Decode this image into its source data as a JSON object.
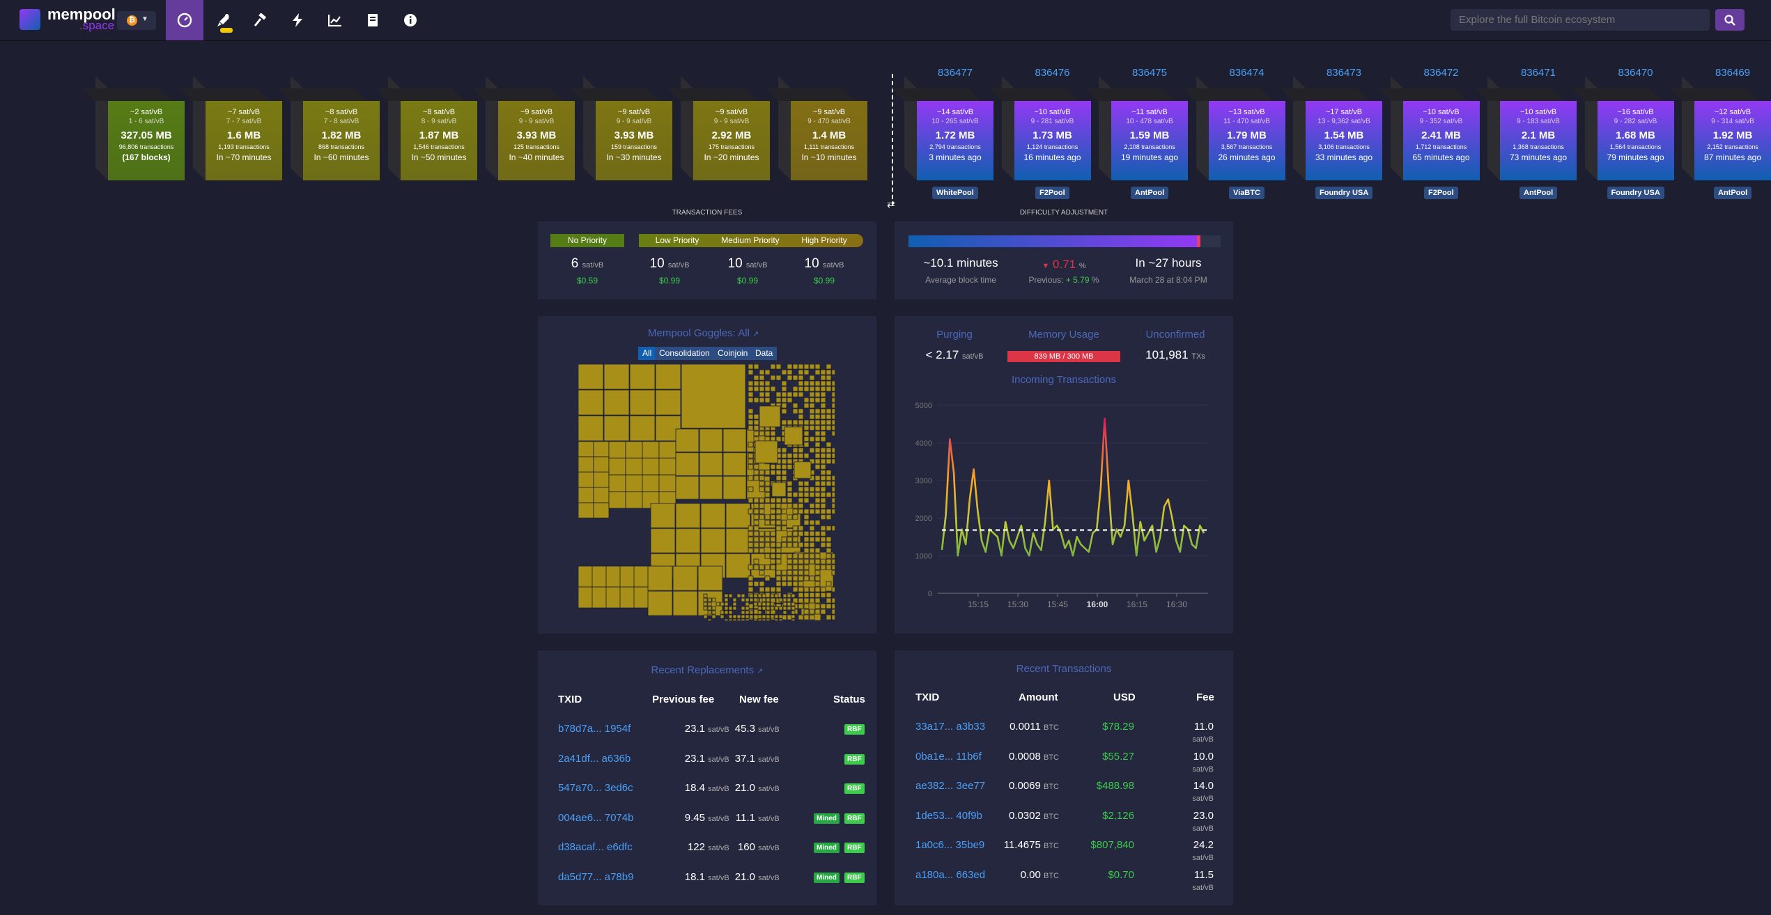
{
  "header": {
    "logo_word": "mempool",
    "logo_suffix": ".space",
    "search_placeholder": "Explore the full Bitcoin ecosystem",
    "nav_icons": [
      "dashboard-icon",
      "rocket-icon",
      "hammer-icon",
      "lightning-icon",
      "graphs-icon",
      "docs-icon",
      "about-icon"
    ]
  },
  "mempool_blocks": [
    {
      "fee": "~2 sat/vB",
      "range": "1 - 6 sat/vB",
      "size": "327.05 MB",
      "tx": "96,806 transactions",
      "eta": "(167 blocks)",
      "color": "#567c15"
    },
    {
      "fee": "~7 sat/vB",
      "range": "7 - 7 sat/vB",
      "size": "1.6 MB",
      "tx": "1,193 transactions",
      "eta": "In ~70 minutes",
      "color": "#7a7a13"
    },
    {
      "fee": "~8 sat/vB",
      "range": "7 - 8 sat/vB",
      "size": "1.82 MB",
      "tx": "868 transactions",
      "eta": "In ~60 minutes",
      "color": "#7a7a13"
    },
    {
      "fee": "~8 sat/vB",
      "range": "8 - 9 sat/vB",
      "size": "1.87 MB",
      "tx": "1,546 transactions",
      "eta": "In ~50 minutes",
      "color": "#7a7a13"
    },
    {
      "fee": "~9 sat/vB",
      "range": "9 - 9 sat/vB",
      "size": "3.93 MB",
      "tx": "125 transactions",
      "eta": "In ~40 minutes",
      "color": "#7e7613"
    },
    {
      "fee": "~9 sat/vB",
      "range": "9 - 9 sat/vB",
      "size": "3.93 MB",
      "tx": "159 transactions",
      "eta": "In ~30 minutes",
      "color": "#7e7613"
    },
    {
      "fee": "~9 sat/vB",
      "range": "9 - 9 sat/vB",
      "size": "2.92 MB",
      "tx": "175 transactions",
      "eta": "In ~20 minutes",
      "color": "#7e7613"
    },
    {
      "fee": "~9 sat/vB",
      "range": "9 - 470 sat/vB",
      "size": "1.4 MB",
      "tx": "1,111 transactions",
      "eta": "In ~10 minutes",
      "color": "#826f14"
    }
  ],
  "mined_blocks": [
    {
      "height": "836477",
      "fee": "~14 sat/vB",
      "range": "10 - 265 sat/vB",
      "size": "1.72 MB",
      "tx": "2,794 transactions",
      "ago": "3 minutes ago",
      "pool": "WhitePool"
    },
    {
      "height": "836476",
      "fee": "~10 sat/vB",
      "range": "9 - 281 sat/vB",
      "size": "1.73 MB",
      "tx": "1,124 transactions",
      "ago": "16 minutes ago",
      "pool": "F2Pool"
    },
    {
      "height": "836475",
      "fee": "~11 sat/vB",
      "range": "10 - 478 sat/vB",
      "size": "1.59 MB",
      "tx": "2,108 transactions",
      "ago": "19 minutes ago",
      "pool": "AntPool"
    },
    {
      "height": "836474",
      "fee": "~13 sat/vB",
      "range": "11 - 470 sat/vB",
      "size": "1.79 MB",
      "tx": "3,567 transactions",
      "ago": "26 minutes ago",
      "pool": "ViaBTC"
    },
    {
      "height": "836473",
      "fee": "~17 sat/vB",
      "range": "13 - 9,362 sat/vB",
      "size": "1.54 MB",
      "tx": "3,106 transactions",
      "ago": "33 minutes ago",
      "pool": "Foundry USA"
    },
    {
      "height": "836472",
      "fee": "~10 sat/vB",
      "range": "9 - 352 sat/vB",
      "size": "2.41 MB",
      "tx": "1,712 transactions",
      "ago": "65 minutes ago",
      "pool": "F2Pool"
    },
    {
      "height": "836471",
      "fee": "~10 sat/vB",
      "range": "9 - 183 sat/vB",
      "size": "2.1 MB",
      "tx": "1,368 transactions",
      "ago": "73 minutes ago",
      "pool": "AntPool"
    },
    {
      "height": "836470",
      "fee": "~16 sat/vB",
      "range": "9 - 282 sat/vB",
      "size": "1.68 MB",
      "tx": "1,564 transactions",
      "ago": "79 minutes ago",
      "pool": "Foundry USA"
    },
    {
      "height": "836469",
      "fee": "~12 sat/vB",
      "range": "9 - 314 sat/vB",
      "size": "1.92 MB",
      "tx": "2,152 transactions",
      "ago": "87 minutes ago",
      "pool": "AntPool"
    }
  ],
  "fees": {
    "title": "TRANSACTION FEES",
    "labels": [
      "No Priority",
      "Low Priority",
      "Medium Priority",
      "High Priority"
    ],
    "values": [
      "6",
      "10",
      "10",
      "10"
    ],
    "unit": "sat/vB",
    "usd": [
      "$0.59",
      "$0.99",
      "$0.99",
      "$0.99"
    ]
  },
  "difficulty": {
    "title": "DIFFICULTY ADJUSTMENT",
    "progress": 0.93,
    "block_time": "~10.1 minutes",
    "block_time_label": "Average block time",
    "change": "0.71",
    "change_unit": "%",
    "previous_label": "Previous:",
    "previous": "+ 5.79",
    "previous_unit": "%",
    "eta": "In ~27 hours",
    "eta_date": "March 28 at 8:04 PM"
  },
  "goggles": {
    "title": "Mempool Goggles: All",
    "tabs": [
      "All",
      "Consolidation",
      "Coinjoin",
      "Data"
    ]
  },
  "stats": {
    "purging_label": "Purging",
    "purging_value": "< 2.17",
    "purging_unit": "sat/vB",
    "memory_label": "Memory Usage",
    "memory_value": "839 MB / 300 MB",
    "memory_fraction": 1.0,
    "unconfirmed_label": "Unconfirmed",
    "unconfirmed_value": "101,981",
    "unconfirmed_unit": "TXs",
    "chart_title": "Incoming Transactions"
  },
  "chart_data": {
    "type": "line",
    "title": "Incoming Transactions",
    "xlabel": "",
    "ylabel": "",
    "ylim": [
      0,
      5000
    ],
    "yticks": [
      "0",
      "1000",
      "2000",
      "3000",
      "4000",
      "5000"
    ],
    "xticks": [
      "15:15",
      "15:30",
      "15:45",
      "16:00",
      "16:15",
      "16:30"
    ],
    "reference_line": 1680,
    "series": [
      {
        "values": [
          1150,
          2100,
          4100,
          3200,
          1000,
          1700,
          1300,
          2500,
          3300,
          2200,
          1400,
          1100,
          1700,
          1600,
          1500,
          1000,
          1900,
          1400,
          1200,
          1500,
          1800,
          1200,
          1000,
          1600,
          1300,
          1150,
          1900,
          3000,
          1700,
          1800,
          1600,
          1200,
          1400,
          1000,
          1500,
          1300,
          1200,
          1100,
          1600,
          1700,
          2800,
          4650,
          2800,
          1300,
          1700,
          1500,
          1800,
          3000,
          2100,
          1000,
          1900,
          1400,
          1600,
          1800,
          1100,
          1500,
          2300,
          2500,
          2000,
          1400,
          1100,
          1800,
          1700,
          1300,
          1200,
          1800,
          1600
        ]
      }
    ]
  },
  "replacements": {
    "title": "Recent Replacements",
    "columns": [
      "TXID",
      "Previous fee",
      "New fee",
      "Status"
    ],
    "unit": "sat/vB",
    "rows": [
      {
        "txid": "b78d7a... 1954f",
        "prev": "23.1",
        "new": "45.3",
        "badges": [
          "RBF"
        ]
      },
      {
        "txid": "2a41df... a636b",
        "prev": "23.1",
        "new": "37.1",
        "badges": [
          "RBF"
        ]
      },
      {
        "txid": "547a70... 3ed6c",
        "prev": "18.4",
        "new": "21.0",
        "badges": [
          "RBF"
        ]
      },
      {
        "txid": "004ae6... 7074b",
        "prev": "9.45",
        "new": "11.1",
        "badges": [
          "Mined",
          "RBF"
        ]
      },
      {
        "txid": "d38acaf... e6dfc",
        "prev": "122",
        "new": "160",
        "badges": [
          "Mined",
          "RBF"
        ]
      },
      {
        "txid": "da5d77... a78b9",
        "prev": "18.1",
        "new": "21.0",
        "badges": [
          "Mined",
          "RBF"
        ]
      }
    ]
  },
  "transactions": {
    "title": "Recent Transactions",
    "columns": [
      "TXID",
      "Amount",
      "USD",
      "Fee"
    ],
    "amount_unit": "BTC",
    "fee_unit": "sat/vB",
    "rows": [
      {
        "txid": "33a17... a3b33",
        "amount": "0.0011",
        "usd": "$78.29",
        "fee": "11.0"
      },
      {
        "txid": "0ba1e... 11b6f",
        "amount": "0.0008",
        "usd": "$55.27",
        "fee": "10.0"
      },
      {
        "txid": "ae382... 3ee77",
        "amount": "0.0069",
        "usd": "$488.98",
        "fee": "14.0"
      },
      {
        "txid": "1de53... 40f9b",
        "amount": "0.0302",
        "usd": "$2,126",
        "fee": "23.0"
      },
      {
        "txid": "1a0c6... 35be9",
        "amount": "11.4675",
        "usd": "$807,840",
        "fee": "24.2"
      },
      {
        "txid": "a180a... 663ed",
        "amount": "0.00",
        "usd": "$0.70",
        "fee": "11.5"
      }
    ]
  },
  "colors": {
    "background": "#1d1f31",
    "card": "#24273e",
    "accent": "#653b9c",
    "link": "#4a9ff5",
    "title_blue": "#4a68b9",
    "green": "#3bcc49",
    "red": "#dc3545",
    "pool_badge": "#2d4d82"
  }
}
